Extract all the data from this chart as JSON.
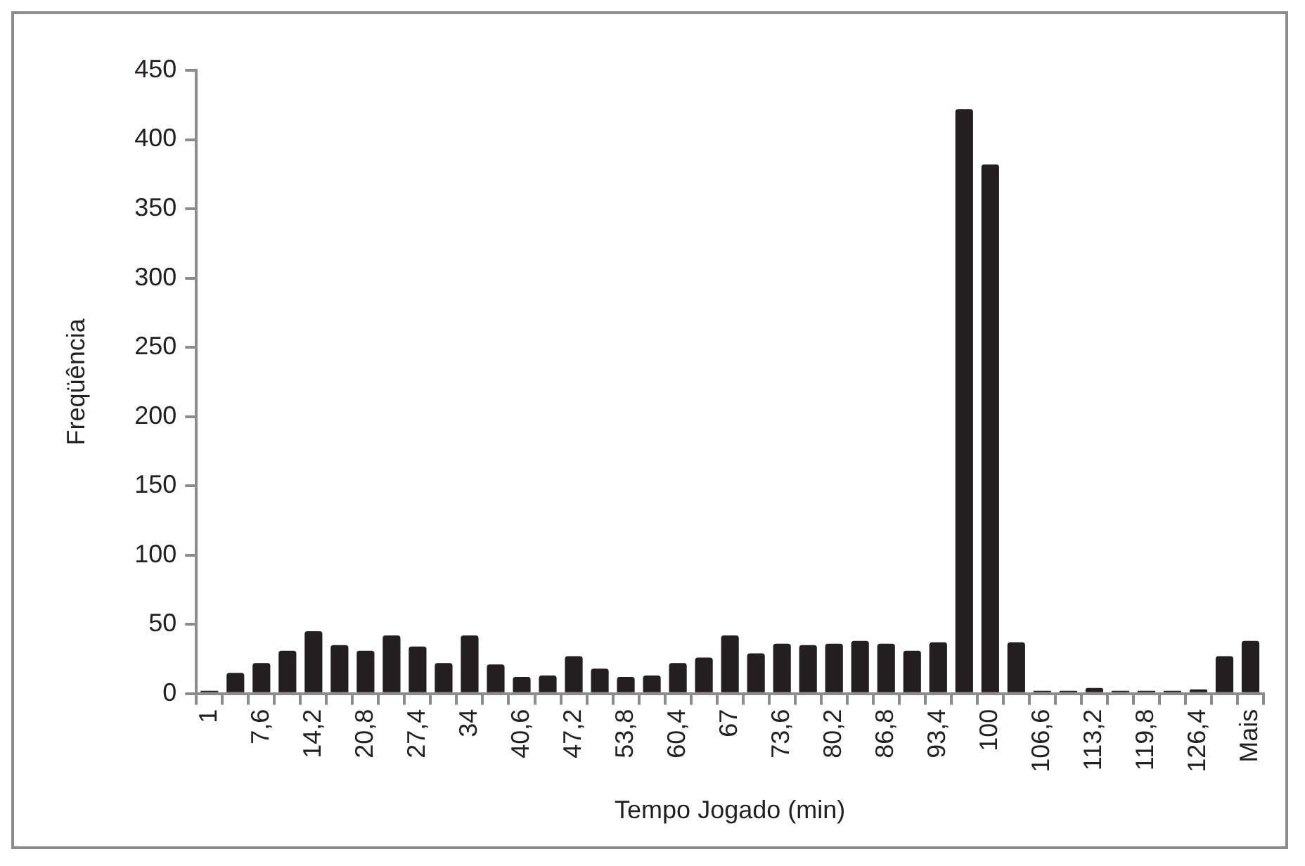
{
  "chart_data": {
    "type": "bar",
    "xlabel": "Tempo Jogado (min)",
    "ylabel": "Freqüência",
    "categories": [
      "1",
      null,
      "7,6",
      null,
      "14,2",
      null,
      "20,8",
      null,
      "27,4",
      null,
      "34",
      null,
      "40,6",
      null,
      "47,2",
      null,
      "53,8",
      null,
      "60,4",
      null,
      "67",
      null,
      "73,6",
      null,
      "80,2",
      null,
      "86,8",
      null,
      "93,4",
      null,
      "100",
      null,
      "106,6",
      null,
      "113,2",
      null,
      "119,8",
      null,
      "126,4",
      null,
      "Mais"
    ],
    "values": [
      2,
      15,
      22,
      31,
      45,
      35,
      31,
      42,
      34,
      22,
      42,
      21,
      12,
      13,
      27,
      18,
      12,
      13,
      22,
      26,
      42,
      29,
      36,
      35,
      36,
      38,
      36,
      31,
      37,
      422,
      382,
      37,
      2,
      2,
      4,
      2,
      2,
      2,
      3,
      27,
      38
    ],
    "color": "#231f20",
    "ylim": [
      0,
      450
    ],
    "yticks": [
      0,
      50,
      100,
      150,
      200,
      250,
      300,
      350,
      400,
      450
    ],
    "grid": false,
    "legend": false
  }
}
